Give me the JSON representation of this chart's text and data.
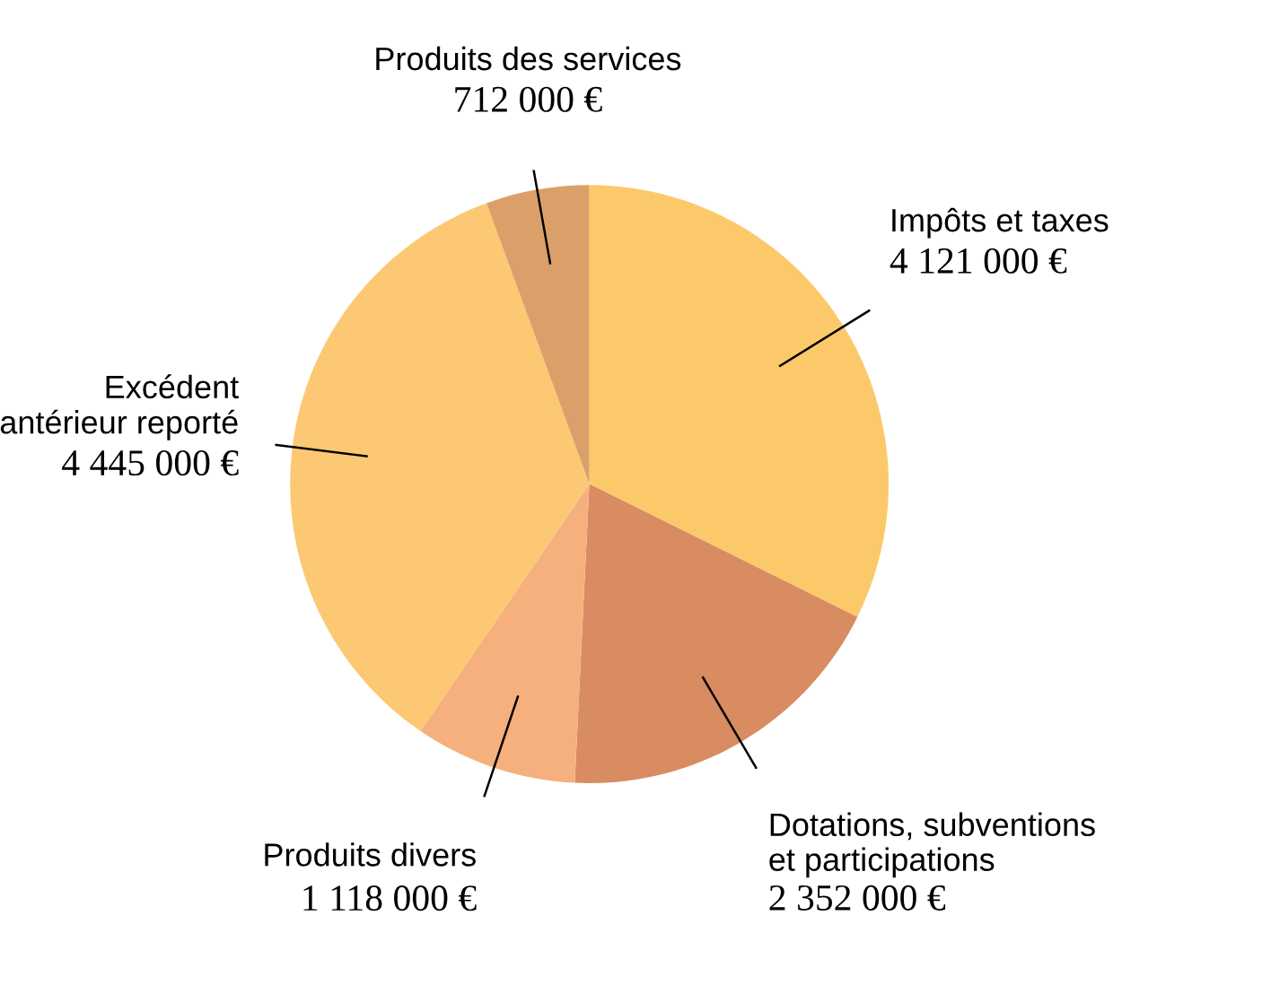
{
  "chart_data": {
    "type": "pie",
    "categories": [
      "Impôts et taxes",
      "Dotations, subventions\net participations",
      "Produits divers",
      "Excédent\nantérieur reporté",
      "Produits des services"
    ],
    "values": [
      4121000,
      2352000,
      1118000,
      4445000,
      712000
    ],
    "value_labels": [
      "4 121 000 €",
      "2 352 000 €",
      "1 118 000 €",
      "4 445 000 €",
      "712 000 €"
    ],
    "colors": [
      "#fcc96a",
      "#d98b62",
      "#f5b07e",
      "#fcc873",
      "#dba06a"
    ],
    "legend": false
  }
}
